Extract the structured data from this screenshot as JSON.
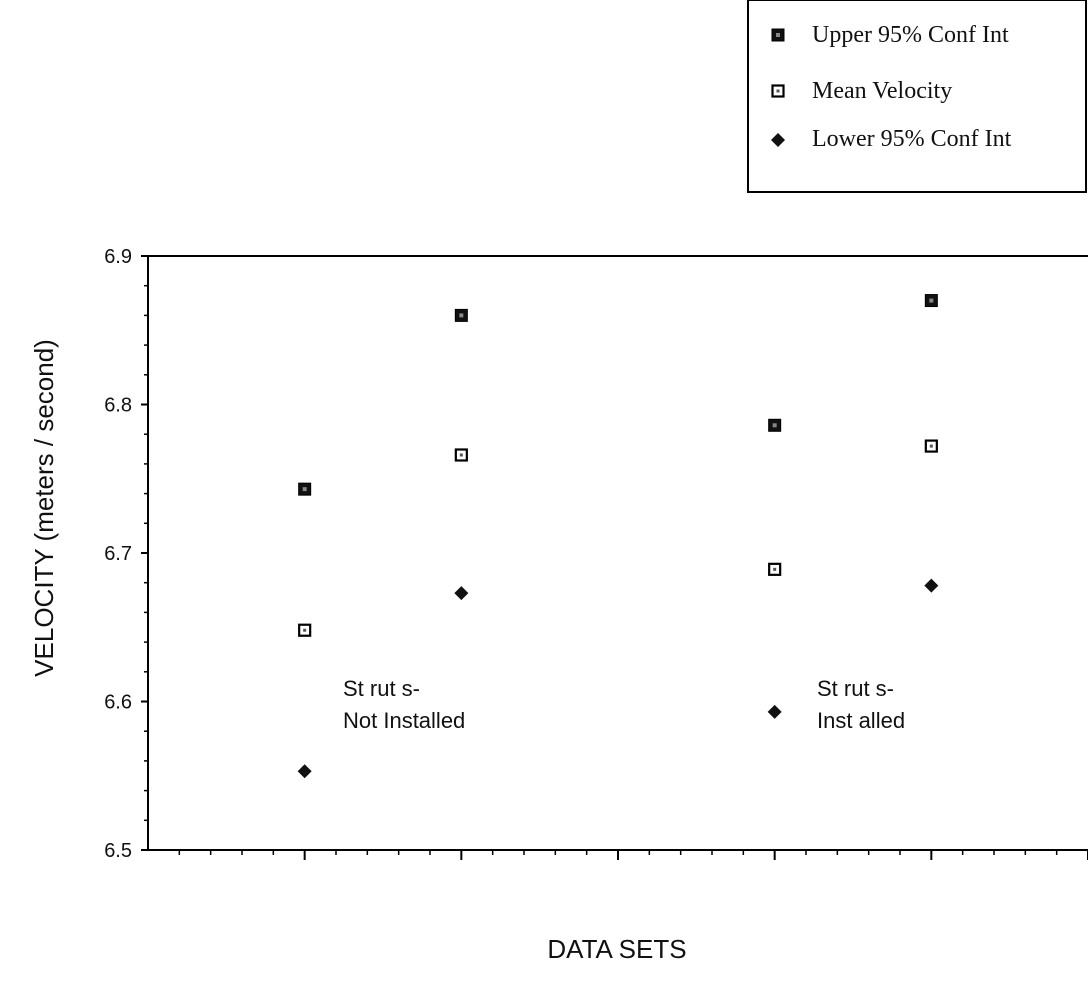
{
  "chart_data": {
    "type": "scatter",
    "title": "",
    "xlabel": "DATA SETS",
    "ylabel": "VELOCITY  (meters / second)",
    "ylim": [
      6.5,
      6.9
    ],
    "y_ticks": [
      "6.5",
      "6.6",
      "6.7",
      "6.8",
      "6.9"
    ],
    "x_tick_labels": [],
    "grid": false,
    "legend_position": "top-right",
    "x": [
      1,
      2,
      4,
      5
    ],
    "series": [
      {
        "name": "Upper 95% Conf Int",
        "marker": "filled-square",
        "values": [
          6.743,
          6.86,
          6.786,
          6.87
        ]
      },
      {
        "name": "Mean Velocity",
        "marker": "open-square",
        "values": [
          6.648,
          6.766,
          6.689,
          6.772
        ]
      },
      {
        "name": "Lower 95% Conf Int",
        "marker": "diamond",
        "values": [
          6.553,
          6.673,
          6.593,
          6.678
        ]
      }
    ],
    "annotations": [
      {
        "lines": [
          "St rut s-",
          "Not Installed"
        ]
      },
      {
        "lines": [
          "St rut s-",
          "Inst alled"
        ]
      }
    ]
  }
}
